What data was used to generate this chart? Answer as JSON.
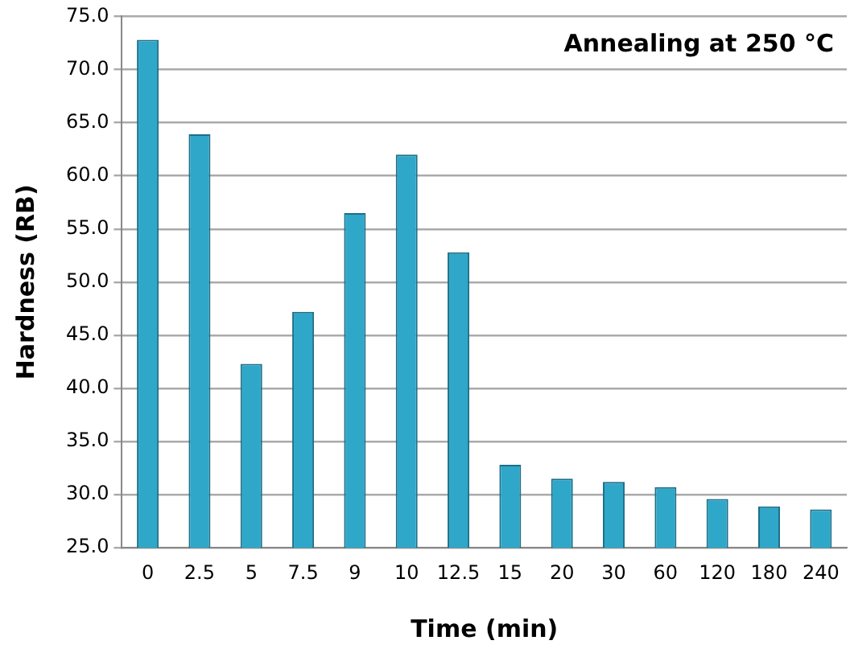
{
  "chart_data": {
    "type": "bar",
    "title": "Annealing at 250 °C",
    "xlabel": "Time (min)",
    "ylabel": "Hardness (RB)",
    "categories": [
      "0",
      "2.5",
      "5",
      "7.5",
      "9",
      "10",
      "12.5",
      "15",
      "20",
      "30",
      "60",
      "120",
      "180",
      "240"
    ],
    "values": [
      72.8,
      63.9,
      42.3,
      47.2,
      56.5,
      62.0,
      52.8,
      32.8,
      31.5,
      31.2,
      30.7,
      29.6,
      28.9,
      28.6
    ],
    "color": "#2fa7c9",
    "ylim": [
      25,
      75
    ],
    "yticks": [
      {
        "value": 25,
        "label": "25.0"
      },
      {
        "value": 30,
        "label": "30.0"
      },
      {
        "value": 35,
        "label": "35.0"
      },
      {
        "value": 40,
        "label": "40.0"
      },
      {
        "value": 45,
        "label": "45.0"
      },
      {
        "value": 50,
        "label": "50.0"
      },
      {
        "value": 55,
        "label": "55.0"
      },
      {
        "value": 60,
        "label": "60.0"
      },
      {
        "value": 65,
        "label": "65.0"
      },
      {
        "value": 70,
        "label": "70.0"
      },
      {
        "value": 75,
        "label": "75.0"
      }
    ],
    "grid": "y"
  }
}
